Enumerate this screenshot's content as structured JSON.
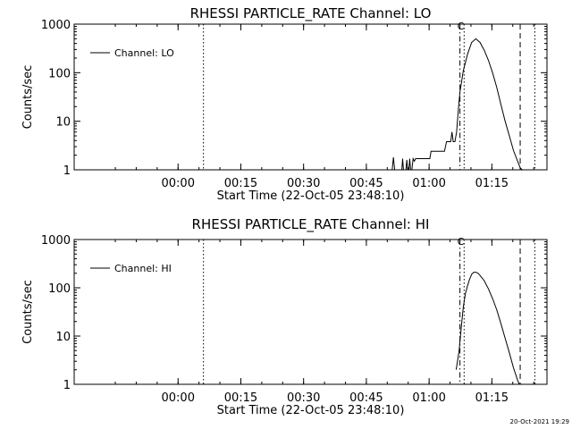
{
  "chart_data": [
    {
      "type": "line",
      "title": "RHESSI PARTICLE_RATE Channel: LO",
      "xlabel": "Start Time (22-Oct-05 23:48:10)",
      "ylabel": "Counts/sec",
      "yscale": "log",
      "ylim": [
        1,
        1000
      ],
      "xlim": [
        -13.0,
        100.0
      ],
      "yticks": [
        {
          "value": 1,
          "label": "1"
        },
        {
          "value": 10,
          "label": "10"
        },
        {
          "value": 100,
          "label": "100"
        },
        {
          "value": 1000,
          "label": "1000"
        }
      ],
      "xticks": [
        {
          "value": 11.83,
          "label": "00:00"
        },
        {
          "value": 26.83,
          "label": "00:15"
        },
        {
          "value": 41.83,
          "label": "00:30"
        },
        {
          "value": 56.83,
          "label": "00:45"
        },
        {
          "value": 71.83,
          "label": "01:00"
        },
        {
          "value": 86.83,
          "label": "01:15"
        }
      ],
      "legend": {
        "label": "Channel: LO",
        "position": "top-left"
      },
      "markers": [
        {
          "x": 17.9,
          "style": "dotted"
        },
        {
          "x": 79.2,
          "style": "dashdot",
          "label": "C"
        },
        {
          "x": 80.2,
          "style": "dotted"
        },
        {
          "x": 93.6,
          "style": "dashed"
        },
        {
          "x": 97.1,
          "style": "dotted"
        }
      ],
      "series": [
        {
          "x": [
            63.0,
            63.3,
            63.6,
            64.5,
            65.3,
            65.5,
            65.7,
            66.3,
            66.5,
            66.7,
            67.0,
            67.2,
            67.4,
            67.7,
            68.0,
            68.3,
            68.6,
            70.0,
            71.5,
            72.0,
            72.3,
            72.6,
            73.5,
            74.5,
            75.0,
            75.5,
            76.0,
            77.0,
            77.3,
            77.6,
            78.0,
            78.4,
            78.8,
            79.2,
            80.0,
            81.0,
            82.0,
            83.0,
            84.0,
            85.0,
            86.0,
            87.0,
            88.0,
            89.0,
            90.0,
            91.0,
            92.0,
            93.0,
            93.6,
            94.1
          ],
          "y": [
            1.0,
            1.8,
            1.0,
            1.0,
            1.0,
            1.7,
            1.0,
            1.0,
            1.6,
            1.0,
            1.0,
            1.7,
            1.0,
            1.0,
            1.7,
            1.5,
            1.7,
            1.7,
            1.7,
            1.7,
            2.4,
            2.4,
            2.4,
            2.4,
            2.4,
            2.4,
            3.8,
            3.8,
            6.0,
            3.8,
            3.8,
            6.0,
            17,
            40,
            110,
            240,
            420,
            500,
            420,
            290,
            180,
            100,
            50,
            22,
            10,
            5,
            2.5,
            1.5,
            1.1,
            1.0
          ]
        }
      ]
    },
    {
      "type": "line",
      "title": "RHESSI PARTICLE_RATE Channel: HI",
      "xlabel": "Start Time (22-Oct-05 23:48:10)",
      "ylabel": "Counts/sec",
      "yscale": "log",
      "ylim": [
        1,
        1000
      ],
      "xlim": [
        -13.0,
        100.0
      ],
      "yticks": [
        {
          "value": 1,
          "label": "1"
        },
        {
          "value": 10,
          "label": "10"
        },
        {
          "value": 100,
          "label": "100"
        },
        {
          "value": 1000,
          "label": "1000"
        }
      ],
      "xticks": [
        {
          "value": 11.83,
          "label": "00:00"
        },
        {
          "value": 26.83,
          "label": "00:15"
        },
        {
          "value": 41.83,
          "label": "00:30"
        },
        {
          "value": 56.83,
          "label": "00:45"
        },
        {
          "value": 71.83,
          "label": "01:00"
        },
        {
          "value": 86.83,
          "label": "01:15"
        }
      ],
      "legend": {
        "label": "Channel: HI",
        "position": "top-left"
      },
      "markers": [
        {
          "x": 17.9,
          "style": "dotted"
        },
        {
          "x": 79.2,
          "style": "dashdot",
          "label": "C"
        },
        {
          "x": 80.2,
          "style": "dotted"
        },
        {
          "x": 93.6,
          "style": "dashed"
        },
        {
          "x": 97.1,
          "style": "dotted"
        }
      ],
      "series": [
        {
          "x": [
            78.3,
            79.0,
            79.6,
            80.0,
            80.5,
            81.0,
            81.5,
            82.0,
            82.5,
            83.0,
            83.5,
            84.0,
            85.0,
            86.0,
            87.0,
            88.0,
            89.0,
            90.0,
            91.0,
            92.0,
            93.0,
            93.4
          ],
          "y": [
            2.0,
            5.0,
            18,
            40,
            75,
            110,
            150,
            190,
            210,
            210,
            200,
            180,
            140,
            95,
            60,
            35,
            18,
            9,
            4.5,
            2.2,
            1.2,
            1.0
          ]
        }
      ]
    }
  ],
  "footer": {
    "timestamp": "20-Oct-2021 19:29"
  }
}
